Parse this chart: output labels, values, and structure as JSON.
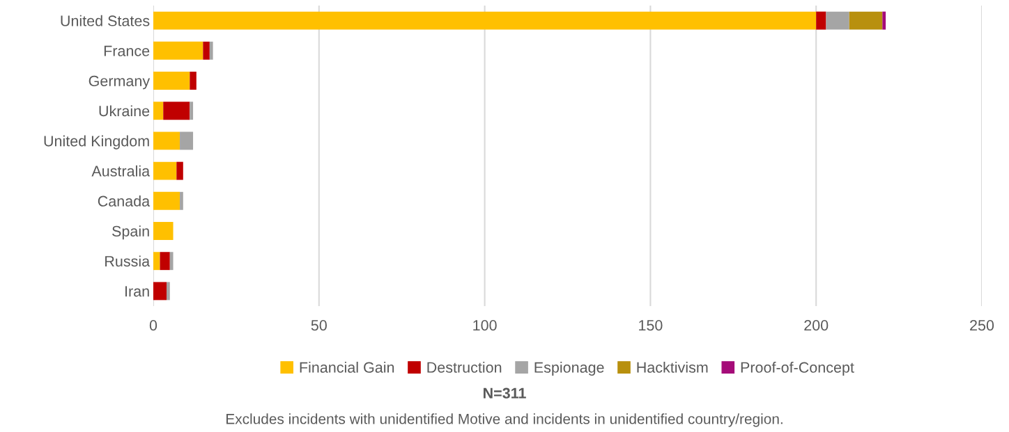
{
  "chart_data": {
    "type": "bar",
    "orientation": "horizontal",
    "stacked": true,
    "categories": [
      "United States",
      "France",
      "Germany",
      "Ukraine",
      "United Kingdom",
      "Australia",
      "Canada",
      "Spain",
      "Russia",
      "Iran"
    ],
    "series": [
      {
        "name": "Financial Gain",
        "color": "#ffc000",
        "values": [
          200,
          15,
          11,
          3,
          8,
          7,
          8,
          6,
          2,
          0
        ]
      },
      {
        "name": "Destruction",
        "color": "#c00000",
        "values": [
          3,
          2,
          2,
          8,
          0,
          2,
          0,
          0,
          3,
          4
        ]
      },
      {
        "name": "Espionage",
        "color": "#a5a5a5",
        "values": [
          7,
          1,
          0,
          1,
          4,
          0,
          1,
          0,
          1,
          1
        ]
      },
      {
        "name": "Hacktivism",
        "color": "#b8900e",
        "values": [
          10,
          0,
          0,
          0,
          0,
          0,
          0,
          0,
          0,
          0
        ]
      },
      {
        "name": "Proof-of-Concept",
        "color": "#a50c79",
        "values": [
          1,
          0,
          0,
          0,
          0,
          0,
          0,
          0,
          0,
          0
        ]
      }
    ],
    "xlim": [
      0,
      250
    ],
    "xticks": [
      0,
      50,
      100,
      150,
      200,
      250
    ],
    "grid": "x",
    "legend": "bottom",
    "annotations": [
      "N=311",
      "Excludes incidents with unidentified Motive and incidents in unidentified country/region."
    ]
  }
}
